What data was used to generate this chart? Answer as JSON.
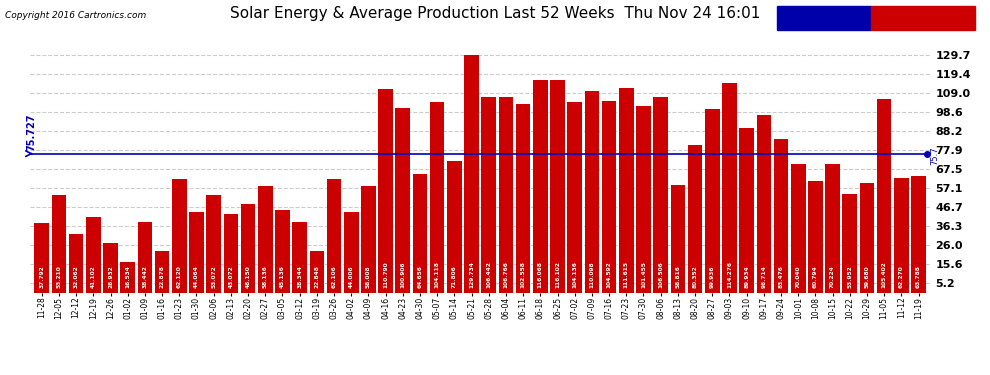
{
  "title": "Solar Energy & Average Production Last 52 Weeks  Thu Nov 24 16:01",
  "copyright": "Copyright 2016 Cartronics.com",
  "average_value": 75.727,
  "bar_color": "#cc0000",
  "average_line_color": "#0000bb",
  "yticks": [
    5.2,
    15.6,
    26.0,
    36.3,
    46.7,
    57.1,
    67.5,
    77.9,
    88.2,
    98.6,
    109.0,
    119.4,
    129.7
  ],
  "background_color": "#ffffff",
  "plot_bg_color": "#ffffff",
  "categories": [
    "11-28",
    "12-05",
    "12-12",
    "12-19",
    "12-26",
    "01-02",
    "01-09",
    "01-16",
    "01-23",
    "01-30",
    "02-06",
    "02-13",
    "02-20",
    "02-27",
    "03-05",
    "03-12",
    "03-19",
    "03-26",
    "04-02",
    "04-09",
    "04-16",
    "04-23",
    "04-30",
    "05-07",
    "05-14",
    "05-21",
    "05-28",
    "06-04",
    "06-11",
    "06-18",
    "06-25",
    "07-02",
    "07-09",
    "07-16",
    "07-23",
    "07-30",
    "08-06",
    "08-13",
    "08-20",
    "08-27",
    "09-03",
    "09-10",
    "09-17",
    "09-24",
    "10-01",
    "10-08",
    "10-15",
    "10-22",
    "10-29",
    "11-05",
    "11-12",
    "11-19"
  ],
  "values": [
    37.792,
    53.21,
    32.062,
    41.102,
    26.932,
    16.534,
    38.442,
    22.878,
    62.12,
    44.064,
    53.072,
    43.072,
    48.15,
    58.136,
    45.136,
    38.344,
    22.848,
    62.106,
    44.006,
    58.008,
    110.79,
    100.906,
    64.656,
    104.118,
    71.806,
    129.734,
    106.442,
    106.766,
    102.558,
    116.068,
    116.102,
    104.136,
    110.098,
    104.592,
    111.615,
    101.455,
    106.506,
    58.816,
    80.352,
    99.936,
    114.276,
    89.934,
    96.714,
    83.476,
    70.04,
    60.794,
    70.224,
    53.952,
    59.68,
    105.402,
    62.27,
    63.788
  ],
  "bar_labels": [
    "37.792",
    "53.210",
    "32.062",
    "41.102",
    "26.932",
    "16.534",
    "38.442",
    "22.878",
    "62.120",
    "44.064",
    "53.072",
    "43.072",
    "48.150",
    "58.136",
    "45.136",
    "38.344",
    "22.848",
    "62.106",
    "44.006",
    "58.008",
    "110.790",
    "100.906",
    "64.656",
    "104.118",
    "71.806",
    "129.734",
    "106.442",
    "106.766",
    "102.558",
    "116.068",
    "116.102",
    "104.136",
    "110.098",
    "104.592",
    "111.615",
    "101.455",
    "106.506",
    "58.816",
    "80.352",
    "99.936",
    "114.276",
    "89.934",
    "96.714",
    "83.476",
    "70.040",
    "60.794",
    "70.224",
    "53.952",
    "59.680",
    "105.402",
    "62.270",
    "63.788"
  ],
  "grid_color": "#cccccc",
  "legend_avg_bg": "#0000aa",
  "legend_weekly_bg": "#cc0000",
  "ylim_max": 135,
  "ylim_min": 0
}
